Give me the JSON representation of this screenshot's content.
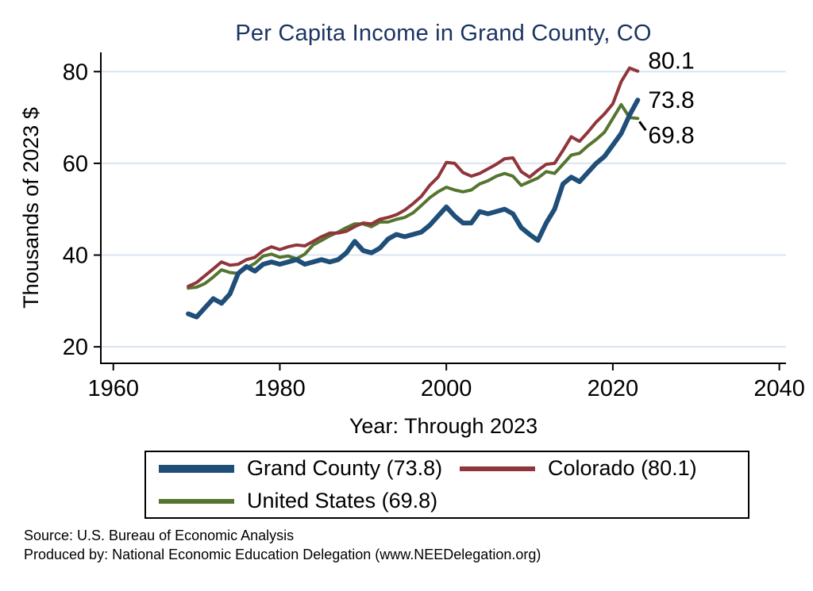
{
  "chart_data": {
    "type": "line",
    "title": "Per Capita Income in Grand County, CO",
    "ylabel": "Thousands of 2023 $",
    "xlabel": "Year: Through 2023",
    "xlim": [
      1958.5,
      2040.8
    ],
    "ylim": [
      16.4,
      84.2
    ],
    "x_ticks": [
      1960,
      1980,
      2000,
      2020,
      2040
    ],
    "y_ticks": [
      20,
      40,
      60,
      80
    ],
    "grid": "horizontal",
    "legend_position": "bottom",
    "x": [
      1969,
      1970,
      1971,
      1972,
      1973,
      1974,
      1975,
      1976,
      1977,
      1978,
      1979,
      1980,
      1981,
      1982,
      1983,
      1984,
      1985,
      1986,
      1987,
      1988,
      1989,
      1990,
      1991,
      1992,
      1993,
      1994,
      1995,
      1996,
      1997,
      1998,
      1999,
      2000,
      2001,
      2002,
      2003,
      2004,
      2005,
      2006,
      2007,
      2008,
      2009,
      2010,
      2011,
      2012,
      2013,
      2014,
      2015,
      2016,
      2017,
      2018,
      2019,
      2020,
      2021,
      2022,
      2023
    ],
    "series": [
      {
        "name": "Grand County",
        "legend_label": "Grand County (73.8)",
        "end_label": "73.8",
        "color": "#1f4e79",
        "width": 6,
        "values": [
          27.2,
          26.5,
          28.5,
          30.5,
          29.5,
          31.5,
          36.0,
          37.5,
          36.5,
          38.0,
          38.5,
          38.0,
          38.5,
          39.0,
          38.0,
          38.5,
          39.0,
          38.5,
          39.0,
          40.5,
          43.0,
          41.0,
          40.5,
          41.5,
          43.5,
          44.5,
          44.0,
          44.5,
          45.0,
          46.5,
          48.5,
          50.5,
          48.5,
          47.0,
          47.0,
          49.5,
          49.0,
          49.5,
          50.0,
          49.0,
          46.0,
          44.5,
          43.2,
          47.0,
          50.0,
          55.5,
          57.0,
          56.0,
          58.0,
          60.0,
          61.5,
          64.0,
          66.5,
          70.5,
          73.8
        ]
      },
      {
        "name": "Colorado",
        "legend_label": "Colorado (80.1)",
        "end_label": "80.1",
        "color": "#90353b",
        "width": 4,
        "values": [
          33.2,
          34.0,
          35.5,
          37.0,
          38.5,
          37.8,
          38.0,
          39.0,
          39.5,
          41.0,
          41.8,
          41.2,
          41.8,
          42.2,
          42.0,
          43.0,
          44.0,
          44.8,
          44.8,
          45.2,
          46.2,
          47.0,
          46.8,
          47.8,
          48.2,
          48.8,
          49.8,
          51.2,
          52.8,
          55.2,
          57.0,
          60.2,
          60.0,
          58.0,
          57.2,
          57.8,
          58.8,
          59.8,
          61.0,
          61.2,
          58.2,
          57.0,
          58.5,
          59.8,
          60.0,
          62.8,
          65.8,
          64.8,
          66.8,
          69.0,
          70.8,
          73.0,
          77.8,
          80.8,
          80.1
        ]
      },
      {
        "name": "United States",
        "legend_label": "United States (69.8)",
        "end_label": "69.8",
        "color": "#55752f",
        "width": 4,
        "values": [
          32.8,
          33.0,
          33.8,
          35.2,
          36.8,
          36.2,
          36.0,
          37.2,
          38.2,
          39.8,
          40.2,
          39.5,
          39.8,
          39.2,
          40.2,
          42.2,
          43.2,
          44.2,
          45.0,
          46.0,
          46.8,
          46.8,
          46.2,
          47.2,
          47.2,
          47.8,
          48.2,
          49.2,
          50.8,
          52.5,
          53.8,
          54.8,
          54.2,
          53.8,
          54.2,
          55.5,
          56.2,
          57.2,
          57.8,
          57.2,
          55.2,
          56.0,
          56.8,
          58.2,
          57.8,
          59.8,
          61.8,
          62.2,
          63.8,
          65.2,
          66.8,
          69.8,
          72.8,
          70.0,
          69.8
        ]
      }
    ]
  },
  "colors": {
    "title": "#1c3461",
    "grid": "#dbe5f0",
    "axis": "#000000"
  },
  "footer": {
    "source_line1": "Source: U.S. Bureau of Economic Analysis",
    "source_line2": "Produced by: National Economic Education Delegation (www.NEEDelegation.org)"
  }
}
